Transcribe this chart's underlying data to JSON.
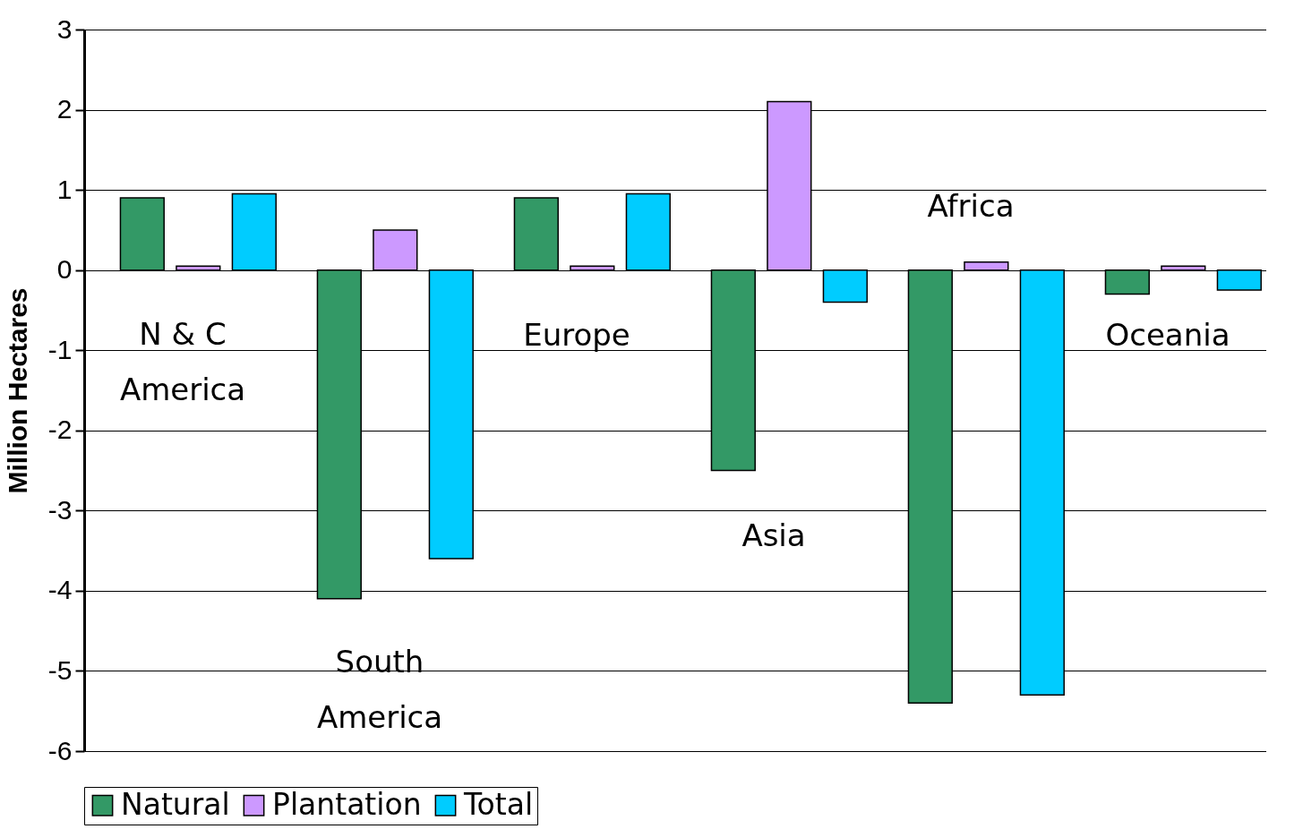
{
  "chart_data": {
    "type": "bar",
    "ylabel": "Million Hectares",
    "categories": [
      "N & C America",
      "South America",
      "Europe",
      "Asia",
      "Africa",
      "Oceania"
    ],
    "series": [
      {
        "name": "Natural",
        "color": "#339966",
        "values": [
          0.9,
          -4.1,
          0.9,
          -2.5,
          -5.4,
          -0.3
        ]
      },
      {
        "name": "Plantation",
        "color": "#cc99ff",
        "values": [
          0.05,
          0.5,
          0.05,
          2.1,
          0.1,
          0.05
        ]
      },
      {
        "name": "Total",
        "color": "#00ccff",
        "values": [
          0.95,
          -3.6,
          0.95,
          -0.4,
          -5.3,
          -0.25
        ]
      }
    ],
    "ylim": [
      -6,
      3
    ],
    "yticks": [
      -6,
      -5,
      -4,
      -3,
      -2,
      -1,
      0,
      1,
      2,
      3
    ],
    "grid": "y",
    "legend": "bottom"
  }
}
